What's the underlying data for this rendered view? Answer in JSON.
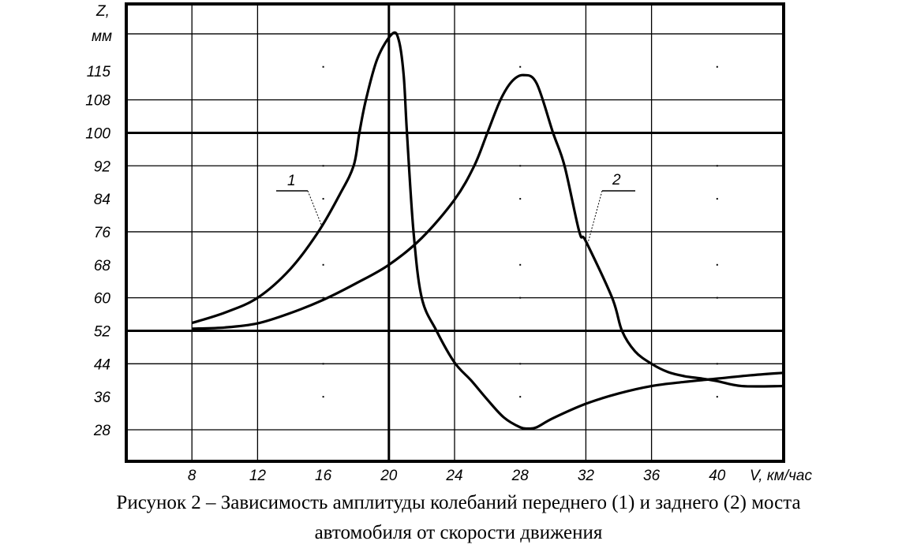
{
  "chart_data": {
    "type": "line",
    "title": "",
    "xlabel": "V, км/час",
    "ylabel": "Z, мм",
    "ylabel_symbol": "Z,",
    "ylabel_unit": "мм",
    "xlim": [
      4,
      44
    ],
    "ylim": [
      20,
      124
    ],
    "x_ticks": [
      8,
      12,
      16,
      20,
      24,
      28,
      32,
      36,
      40
    ],
    "x_tick_labels": [
      "8",
      "12",
      "16",
      "20",
      "24",
      "28",
      "32",
      "36",
      "40"
    ],
    "y_ticks": [
      115,
      108,
      100,
      92,
      84,
      76,
      68,
      60,
      52,
      44,
      36,
      28
    ],
    "y_tick_labels": [
      "115",
      "108",
      "100",
      "92",
      "84",
      "76",
      "68",
      "60",
      "52",
      "44",
      "36",
      "28"
    ],
    "grid": true,
    "series": [
      {
        "name": "1",
        "label": "1",
        "points": [
          [
            8,
            53.9
          ],
          [
            10,
            56.4
          ],
          [
            12,
            60
          ],
          [
            14,
            67
          ],
          [
            15.7,
            76
          ],
          [
            17,
            85
          ],
          [
            17.85,
            92
          ],
          [
            18.2,
            100
          ],
          [
            18.6,
            108
          ],
          [
            19.3,
            118
          ],
          [
            20.2,
            124
          ],
          [
            20.6,
            122.5
          ],
          [
            20.9,
            114
          ],
          [
            21.1,
            100
          ],
          [
            21.5,
            76
          ],
          [
            22,
            60
          ],
          [
            22.9,
            52
          ],
          [
            24,
            44.3
          ],
          [
            25,
            40
          ],
          [
            26,
            35.3
          ],
          [
            27,
            31
          ],
          [
            28,
            28.6
          ],
          [
            28.5,
            28.3
          ],
          [
            29,
            28.6
          ],
          [
            30,
            30.8
          ],
          [
            32,
            34.3
          ],
          [
            34,
            36.8
          ],
          [
            36,
            38.6
          ],
          [
            38,
            39.6
          ],
          [
            40,
            40.4
          ],
          [
            42,
            41.2
          ],
          [
            44,
            41.8
          ]
        ]
      },
      {
        "name": "2",
        "label": "2",
        "points": [
          [
            8,
            52.5
          ],
          [
            10,
            52.8
          ],
          [
            12,
            53.8
          ],
          [
            14,
            56.3
          ],
          [
            16,
            59.5
          ],
          [
            18,
            63.5
          ],
          [
            20,
            68
          ],
          [
            22,
            74.5
          ],
          [
            24,
            83.8
          ],
          [
            25.2,
            92
          ],
          [
            26,
            100
          ],
          [
            26.8,
            108
          ],
          [
            27.5,
            112.5
          ],
          [
            28.2,
            114
          ],
          [
            29,
            112
          ],
          [
            30,
            100
          ],
          [
            30.7,
            92
          ],
          [
            31.6,
            76
          ],
          [
            32,
            73.7
          ],
          [
            33.6,
            60
          ],
          [
            34.2,
            52
          ],
          [
            35,
            47
          ],
          [
            36,
            44
          ],
          [
            37,
            42
          ],
          [
            38,
            41
          ],
          [
            39.1,
            40.4
          ],
          [
            40,
            39.8
          ],
          [
            41.5,
            38.6
          ],
          [
            44,
            38.6
          ]
        ]
      }
    ]
  },
  "caption": {
    "line1": "Рисунок 2 – Зависимость амплитуды колебаний переднего (1) и заднего (2) моста",
    "line2": "автомобиля от скорости движения"
  }
}
